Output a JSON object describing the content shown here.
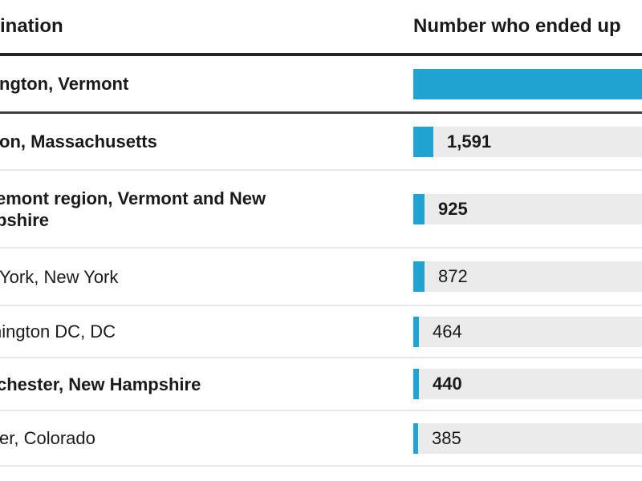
{
  "header": {
    "destination_label": "ination",
    "number_label": "Number who ended up"
  },
  "rows": [
    {
      "label": "ngton, Vermont",
      "bold": true,
      "value": null,
      "value_label": "",
      "bar_full": true
    },
    {
      "label": "on, Massachusetts",
      "bold": true,
      "value": 1591,
      "value_label": "1,591",
      "bar_full": false
    },
    {
      "label": "emont region, Vermont and New\npshire",
      "bold": true,
      "value": 925,
      "value_label": "925",
      "bar_full": false
    },
    {
      "label": "York, New York",
      "bold": false,
      "value": 872,
      "value_label": "872",
      "bar_full": false
    },
    {
      "label": "hington DC, DC",
      "bold": false,
      "value": 464,
      "value_label": "464",
      "bar_full": false
    },
    {
      "label": "chester, New Hampshire",
      "bold": true,
      "value": 440,
      "value_label": "440",
      "bar_full": false
    },
    {
      "label": "er, Colorado",
      "bold": false,
      "value": 385,
      "value_label": "385",
      "bar_full": false
    }
  ],
  "colors": {
    "bar_blue": "#21a4d2",
    "bar_track": "#ebebeb",
    "text": "#1a1a1a",
    "header_rule": "#262626",
    "row1_rule": "#404040",
    "row_rule": "#e8e8e8"
  },
  "chart_data": {
    "type": "bar",
    "orientation": "horizontal",
    "categories": [
      "ngton, Vermont",
      "on, Massachusetts",
      "emont region, Vermont and New pshire",
      "York, New York",
      "hington DC, DC",
      "chester, New Hampshire",
      "er, Colorado"
    ],
    "values": [
      null,
      1591,
      925,
      872,
      464,
      440,
      385
    ],
    "value_labels": [
      "",
      "1,591",
      "925",
      "872",
      "464",
      "440",
      "385"
    ],
    "notes": "First row's bar extends beyond the right edge of the view; its value label is not visible.",
    "column_headers": [
      "ination",
      "Number who ended up"
    ],
    "title": "",
    "xlabel": "",
    "ylabel": "",
    "grid": false,
    "legend": false
  }
}
